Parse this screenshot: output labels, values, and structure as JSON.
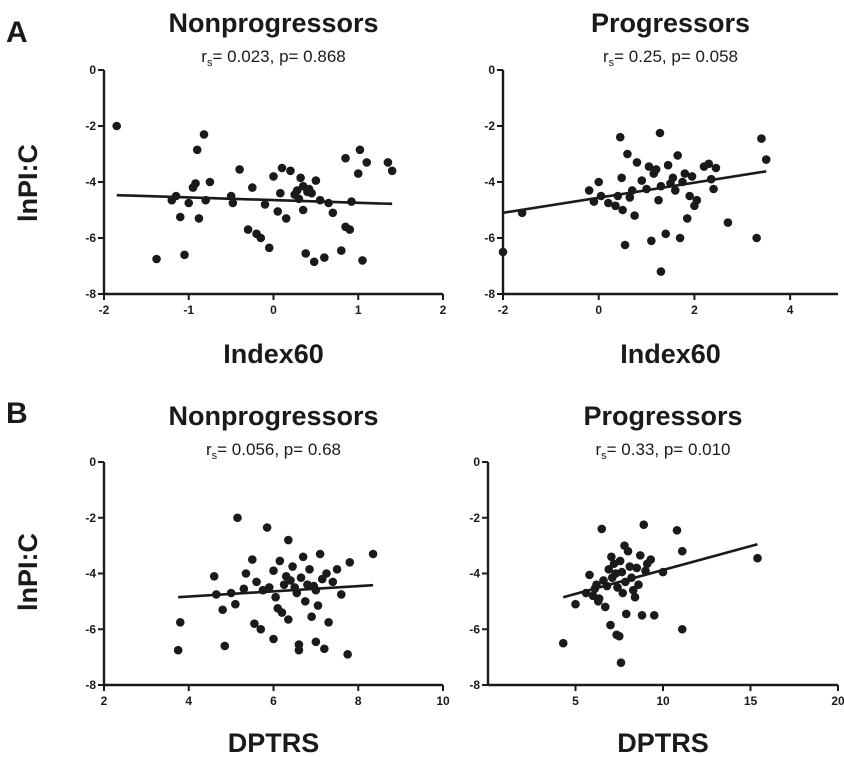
{
  "figure": {
    "ylabel_a": "lnPI:C",
    "ylabel_b": "lnPI:C"
  },
  "chart_data": [
    {
      "panel": "A",
      "type": "scatter",
      "title": "Nonprogressors",
      "stat_prefix": "r",
      "stat_sub": "s",
      "stat_rest": "= 0.023, p= 0.868",
      "xlabel": "Index60",
      "ylabel": "lnPI:C",
      "xlim": [
        -2,
        2
      ],
      "ylim": [
        -8,
        0
      ],
      "xticks": [
        -2,
        -1,
        0,
        1,
        2
      ],
      "yticks": [
        0,
        -2,
        -4,
        -6,
        -8
      ],
      "grid": false,
      "regression": {
        "x0": -1.85,
        "y0": -4.47,
        "x1": 1.4,
        "y1": -4.78
      },
      "points": [
        [
          -1.85,
          -2.0
        ],
        [
          -1.38,
          -6.75
        ],
        [
          -1.2,
          -4.65
        ],
        [
          -1.15,
          -4.5
        ],
        [
          -1.1,
          -5.25
        ],
        [
          -1.05,
          -6.6
        ],
        [
          -1.0,
          -4.75
        ],
        [
          -0.95,
          -4.2
        ],
        [
          -0.92,
          -4.05
        ],
        [
          -0.9,
          -2.85
        ],
        [
          -0.88,
          -5.3
        ],
        [
          -0.82,
          -2.3
        ],
        [
          -0.8,
          -4.65
        ],
        [
          -0.75,
          -4.0
        ],
        [
          -0.5,
          -4.5
        ],
        [
          -0.48,
          -4.75
        ],
        [
          -0.4,
          -3.55
        ],
        [
          -0.3,
          -5.7
        ],
        [
          -0.25,
          -4.2
        ],
        [
          -0.2,
          -5.85
        ],
        [
          -0.15,
          -6.0
        ],
        [
          -0.1,
          -4.8
        ],
        [
          -0.05,
          -6.35
        ],
        [
          0.0,
          -3.8
        ],
        [
          0.05,
          -5.05
        ],
        [
          0.08,
          -4.4
        ],
        [
          0.1,
          -3.5
        ],
        [
          0.15,
          -5.3
        ],
        [
          0.2,
          -3.6
        ],
        [
          0.25,
          -4.45
        ],
        [
          0.28,
          -4.3
        ],
        [
          0.3,
          -4.6
        ],
        [
          0.32,
          -3.85
        ],
        [
          0.35,
          -5.0
        ],
        [
          0.35,
          -4.15
        ],
        [
          0.38,
          -6.55
        ],
        [
          0.4,
          -4.35
        ],
        [
          0.42,
          -4.25
        ],
        [
          0.45,
          -4.4
        ],
        [
          0.48,
          -6.85
        ],
        [
          0.5,
          -3.95
        ],
        [
          0.55,
          -4.65
        ],
        [
          0.6,
          -6.7
        ],
        [
          0.65,
          -4.75
        ],
        [
          0.7,
          -5.1
        ],
        [
          0.8,
          -6.45
        ],
        [
          0.85,
          -3.15
        ],
        [
          0.85,
          -5.6
        ],
        [
          0.9,
          -5.7
        ],
        [
          0.92,
          -4.7
        ],
        [
          1.0,
          -3.7
        ],
        [
          1.02,
          -2.85
        ],
        [
          1.05,
          -6.8
        ],
        [
          1.1,
          -3.3
        ],
        [
          1.35,
          -3.3
        ],
        [
          1.4,
          -3.6
        ]
      ]
    },
    {
      "panel": "A",
      "type": "scatter",
      "title": "Progressors",
      "stat_prefix": "r",
      "stat_sub": "s",
      "stat_rest": "= 0.25, p= 0.058",
      "xlabel": "Index60",
      "ylabel": "",
      "xlim": [
        -2,
        5
      ],
      "ylim": [
        -8,
        0
      ],
      "xticks": [
        -2,
        0,
        2,
        4
      ],
      "yticks": [
        0,
        -2,
        -4,
        -6,
        -8
      ],
      "grid": false,
      "regression": {
        "x0": -2.0,
        "y0": -5.1,
        "x1": 3.5,
        "y1": -3.62
      },
      "points": [
        [
          -2.0,
          -6.5
        ],
        [
          -1.6,
          -5.1
        ],
        [
          -0.2,
          -4.3
        ],
        [
          -0.1,
          -4.7
        ],
        [
          0.0,
          -4.0
        ],
        [
          0.05,
          -4.5
        ],
        [
          0.2,
          -4.75
        ],
        [
          0.35,
          -4.85
        ],
        [
          0.4,
          -4.5
        ],
        [
          0.45,
          -2.4
        ],
        [
          0.48,
          -3.85
        ],
        [
          0.5,
          -5.0
        ],
        [
          0.55,
          -6.25
        ],
        [
          0.6,
          -3.0
        ],
        [
          0.65,
          -4.55
        ],
        [
          0.7,
          -4.3
        ],
        [
          0.75,
          -5.2
        ],
        [
          0.8,
          -3.3
        ],
        [
          0.9,
          -3.95
        ],
        [
          1.0,
          -4.25
        ],
        [
          1.05,
          -3.45
        ],
        [
          1.1,
          -6.1
        ],
        [
          1.15,
          -3.7
        ],
        [
          1.2,
          -3.55
        ],
        [
          1.25,
          -4.65
        ],
        [
          1.28,
          -2.25
        ],
        [
          1.3,
          -4.15
        ],
        [
          1.3,
          -7.2
        ],
        [
          1.4,
          -5.85
        ],
        [
          1.45,
          -3.4
        ],
        [
          1.5,
          -4.05
        ],
        [
          1.55,
          -3.85
        ],
        [
          1.6,
          -4.3
        ],
        [
          1.65,
          -3.05
        ],
        [
          1.7,
          -6.0
        ],
        [
          1.75,
          -4.0
        ],
        [
          1.8,
          -3.7
        ],
        [
          1.85,
          -5.3
        ],
        [
          1.9,
          -4.5
        ],
        [
          1.95,
          -3.8
        ],
        [
          2.0,
          -4.85
        ],
        [
          2.05,
          -4.65
        ],
        [
          2.2,
          -3.45
        ],
        [
          2.3,
          -3.35
        ],
        [
          2.35,
          -3.9
        ],
        [
          2.4,
          -4.25
        ],
        [
          2.45,
          -3.5
        ],
        [
          2.7,
          -5.45
        ],
        [
          3.3,
          -6.0
        ],
        [
          3.4,
          -2.45
        ],
        [
          3.5,
          -3.2
        ]
      ]
    },
    {
      "panel": "B",
      "type": "scatter",
      "title": "Nonprogressors",
      "stat_prefix": "r",
      "stat_sub": "s",
      "stat_rest": "= 0.056, p= 0.68",
      "xlabel": "DPTRS",
      "ylabel": "lnPI:C",
      "xlim": [
        2,
        10
      ],
      "ylim": [
        -8,
        0
      ],
      "xticks": [
        2,
        4,
        6,
        8,
        10
      ],
      "yticks": [
        0,
        -2,
        -4,
        -6,
        -8
      ],
      "grid": false,
      "regression": {
        "x0": 3.75,
        "y0": -4.85,
        "x1": 8.35,
        "y1": -4.42
      },
      "points": [
        [
          3.75,
          -6.75
        ],
        [
          3.8,
          -5.75
        ],
        [
          4.6,
          -4.1
        ],
        [
          4.65,
          -4.75
        ],
        [
          4.8,
          -5.3
        ],
        [
          4.85,
          -6.6
        ],
        [
          5.0,
          -4.7
        ],
        [
          5.1,
          -5.1
        ],
        [
          5.15,
          -2.0
        ],
        [
          5.3,
          -4.55
        ],
        [
          5.35,
          -4.0
        ],
        [
          5.5,
          -3.5
        ],
        [
          5.55,
          -5.8
        ],
        [
          5.6,
          -4.3
        ],
        [
          5.7,
          -6.0
        ],
        [
          5.75,
          -4.6
        ],
        [
          5.85,
          -2.35
        ],
        [
          5.9,
          -4.5
        ],
        [
          6.0,
          -3.9
        ],
        [
          6.0,
          -6.35
        ],
        [
          6.05,
          -4.85
        ],
        [
          6.1,
          -5.25
        ],
        [
          6.15,
          -3.55
        ],
        [
          6.2,
          -5.4
        ],
        [
          6.25,
          -4.4
        ],
        [
          6.3,
          -4.1
        ],
        [
          6.35,
          -2.8
        ],
        [
          6.35,
          -5.65
        ],
        [
          6.4,
          -4.25
        ],
        [
          6.45,
          -3.75
        ],
        [
          6.5,
          -4.5
        ],
        [
          6.55,
          -4.7
        ],
        [
          6.6,
          -6.55
        ],
        [
          6.6,
          -6.75
        ],
        [
          6.65,
          -4.15
        ],
        [
          6.7,
          -3.4
        ],
        [
          6.75,
          -5.0
        ],
        [
          6.8,
          -4.4
        ],
        [
          6.85,
          -3.85
        ],
        [
          6.9,
          -5.55
        ],
        [
          6.95,
          -4.45
        ],
        [
          7.0,
          -4.6
        ],
        [
          7.0,
          -6.45
        ],
        [
          7.05,
          -5.15
        ],
        [
          7.1,
          -3.3
        ],
        [
          7.15,
          -4.2
        ],
        [
          7.2,
          -6.7
        ],
        [
          7.25,
          -4.0
        ],
        [
          7.3,
          -5.75
        ],
        [
          7.4,
          -4.3
        ],
        [
          7.5,
          -3.85
        ],
        [
          7.6,
          -4.75
        ],
        [
          7.75,
          -6.9
        ],
        [
          7.8,
          -3.6
        ],
        [
          8.35,
          -3.3
        ]
      ]
    },
    {
      "panel": "B",
      "type": "scatter",
      "title": "Progressors",
      "stat_prefix": "r",
      "stat_sub": "s",
      "stat_rest": "= 0.33, p= 0.010",
      "xlabel": "DPTRS",
      "ylabel": "",
      "xlim": [
        0,
        20
      ],
      "ylim": [
        -8,
        0
      ],
      "xticks": [
        5,
        10,
        15,
        20
      ],
      "yticks": [
        0,
        -2,
        -4,
        -6,
        -8
      ],
      "grid": false,
      "regression": {
        "x0": 4.3,
        "y0": -4.85,
        "x1": 15.4,
        "y1": -2.95
      },
      "points": [
        [
          4.3,
          -6.5
        ],
        [
          5.0,
          -5.1
        ],
        [
          5.6,
          -4.7
        ],
        [
          5.8,
          -4.05
        ],
        [
          6.0,
          -4.8
        ],
        [
          6.1,
          -4.55
        ],
        [
          6.2,
          -4.4
        ],
        [
          6.3,
          -5.0
        ],
        [
          6.35,
          -4.9
        ],
        [
          6.5,
          -2.4
        ],
        [
          6.6,
          -4.25
        ],
        [
          6.7,
          -5.2
        ],
        [
          6.8,
          -4.45
        ],
        [
          6.9,
          -3.85
        ],
        [
          7.0,
          -5.85
        ],
        [
          7.05,
          -3.4
        ],
        [
          7.1,
          -4.15
        ],
        [
          7.2,
          -3.65
        ],
        [
          7.3,
          -4.0
        ],
        [
          7.35,
          -6.2
        ],
        [
          7.4,
          -4.5
        ],
        [
          7.5,
          -6.25
        ],
        [
          7.55,
          -3.55
        ],
        [
          7.6,
          -7.2
        ],
        [
          7.65,
          -3.95
        ],
        [
          7.7,
          -4.7
        ],
        [
          7.8,
          -3.0
        ],
        [
          7.85,
          -4.3
        ],
        [
          7.9,
          -5.45
        ],
        [
          8.0,
          -3.2
        ],
        [
          8.1,
          -3.75
        ],
        [
          8.2,
          -4.15
        ],
        [
          8.3,
          -4.6
        ],
        [
          8.4,
          -4.85
        ],
        [
          8.5,
          -3.8
        ],
        [
          8.6,
          -4.4
        ],
        [
          8.7,
          -3.35
        ],
        [
          8.8,
          -5.5
        ],
        [
          8.9,
          -2.25
        ],
        [
          9.0,
          -3.9
        ],
        [
          9.1,
          -3.65
        ],
        [
          9.3,
          -3.5
        ],
        [
          9.5,
          -5.5
        ],
        [
          10.0,
          -3.95
        ],
        [
          10.8,
          -2.45
        ],
        [
          11.1,
          -3.2
        ],
        [
          11.1,
          -6.0
        ],
        [
          15.4,
          -3.45
        ]
      ]
    }
  ]
}
